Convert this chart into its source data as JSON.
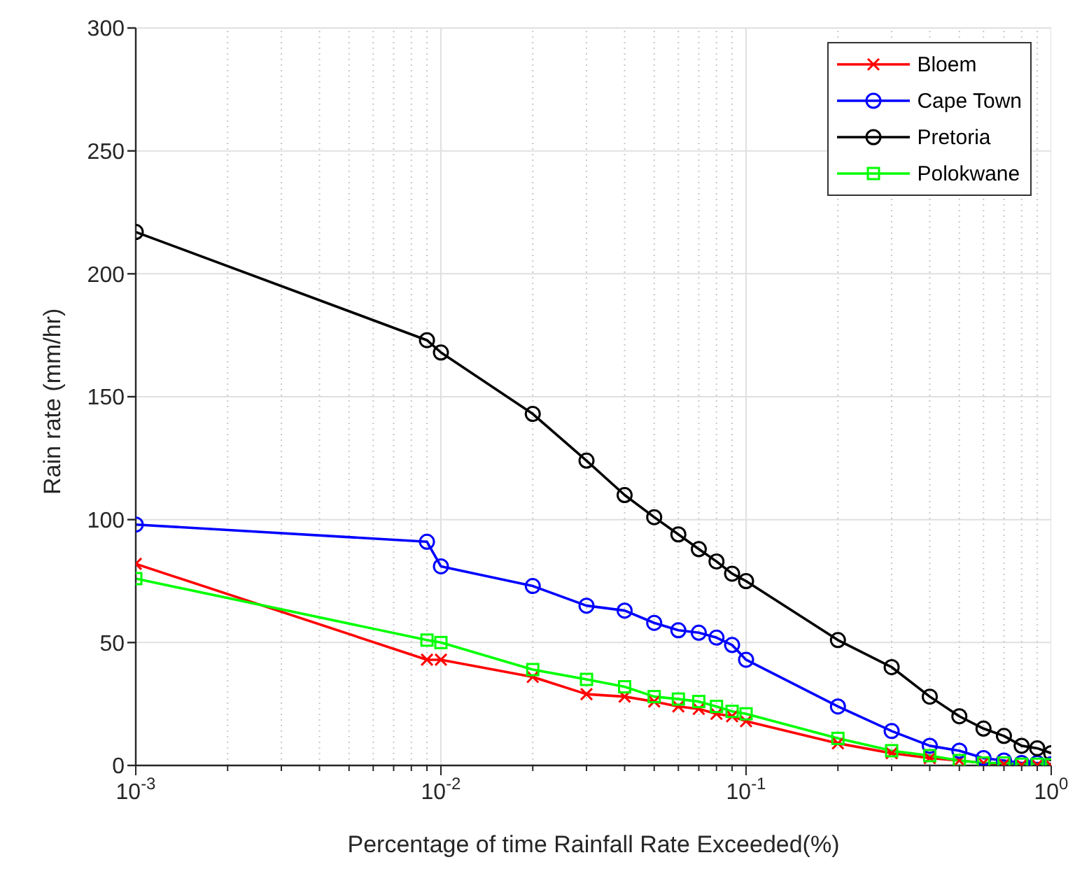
{
  "chart_data": {
    "type": "line",
    "xlabel": "Percentage of time Rainfall Rate Exceeded(%)",
    "ylabel": "Rain rate (mm/hr)",
    "log": "x",
    "xlim": [
      0.001,
      1
    ],
    "xticks": [
      {
        "value": 0.001,
        "label": "10$^{-3}$"
      },
      {
        "value": 0.002,
        "label": null
      },
      {
        "value": 0.003,
        "label": null
      },
      {
        "value": 0.004,
        "label": null
      },
      {
        "value": 0.005,
        "label": null
      },
      {
        "value": 0.006,
        "label": null
      },
      {
        "value": 0.007,
        "label": null
      },
      {
        "value": 0.008,
        "label": null
      },
      {
        "value": 0.009,
        "label": null
      },
      {
        "value": 0.01,
        "label": "10$^{-2}$"
      },
      {
        "value": 0.02,
        "label": null
      },
      {
        "value": 0.03,
        "label": null
      },
      {
        "value": 0.04,
        "label": null
      },
      {
        "value": 0.05,
        "label": null
      },
      {
        "value": 0.06,
        "label": null
      },
      {
        "value": 0.07,
        "label": null
      },
      {
        "value": 0.08,
        "label": null
      },
      {
        "value": 0.09,
        "label": null
      },
      {
        "value": 0.1,
        "label": "10$^{-1}$"
      },
      {
        "value": 0.2,
        "label": null
      },
      {
        "value": 0.3,
        "label": null
      },
      {
        "value": 0.4,
        "label": null
      },
      {
        "value": 0.5,
        "label": null
      },
      {
        "value": 0.6,
        "label": null
      },
      {
        "value": 0.7,
        "label": null
      },
      {
        "value": 0.8,
        "label": null
      },
      {
        "value": 0.9,
        "label": null
      },
      {
        "value": 1,
        "label": "10$^{0}$"
      }
    ],
    "ylim": [
      0,
      300
    ],
    "yticks": [
      0,
      50,
      100,
      150,
      200,
      250,
      300
    ],
    "grid": true,
    "legend": "top right",
    "line_style": "solid",
    "x": [
      0.001,
      0.009,
      0.01,
      0.02,
      0.03,
      0.04,
      0.05,
      0.06,
      0.07,
      0.08,
      0.09,
      0.1,
      0.2,
      0.3,
      0.4,
      0.5,
      0.6,
      0.7,
      0.8,
      0.9,
      1
    ],
    "series": [
      {
        "name": "Bloem",
        "color": "#ff0000",
        "marker": "cross",
        "values": [
          82,
          43,
          43,
          36,
          29,
          28,
          26,
          24,
          23,
          21,
          20,
          18,
          9,
          5,
          3,
          2,
          1,
          0.5,
          0.3,
          0.2,
          0
        ]
      },
      {
        "name": "Cape Town",
        "color": "#0000ff",
        "marker": "circle",
        "values": [
          98,
          91,
          81,
          73,
          65,
          63,
          58,
          55,
          54,
          52,
          49,
          43,
          24,
          14,
          8,
          6,
          3,
          2,
          1,
          1,
          0.5
        ]
      },
      {
        "name": "Pretoria",
        "color": "#000000",
        "marker": "circle",
        "values": [
          217,
          173,
          168,
          143,
          124,
          110,
          101,
          94,
          88,
          83,
          78,
          75,
          51,
          40,
          28,
          20,
          15,
          12,
          8,
          7,
          5
        ]
      },
      {
        "name": "Polokwane",
        "color": "#00ff00",
        "marker": "square",
        "values": [
          76,
          51,
          50,
          39,
          35,
          32,
          28,
          27,
          26,
          24,
          22,
          21,
          11,
          6,
          4,
          2,
          1,
          1,
          0.5,
          0.5,
          0.3
        ]
      }
    ]
  }
}
